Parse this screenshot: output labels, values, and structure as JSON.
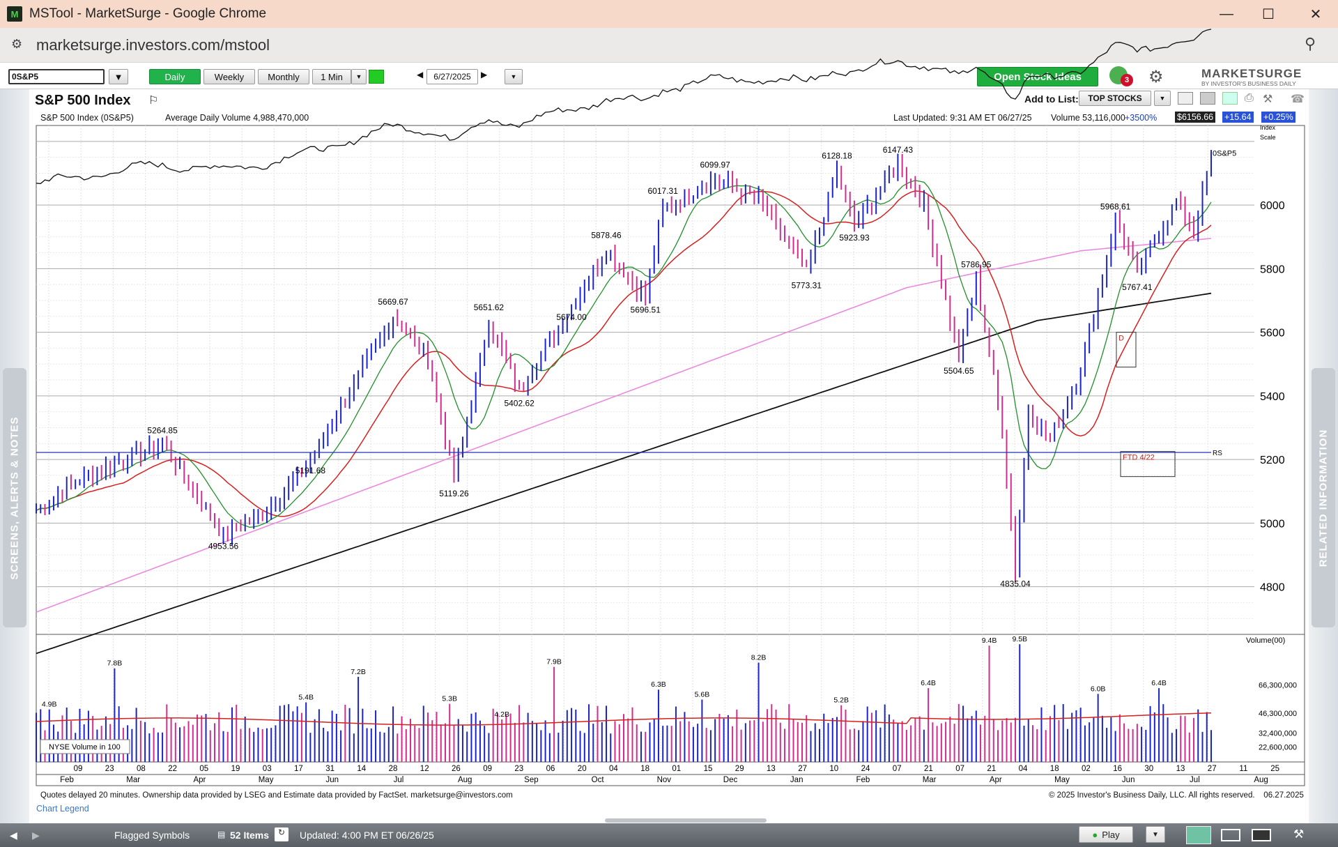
{
  "window": {
    "title": "MSTool - MarketSurge - Google Chrome"
  },
  "browser": {
    "url": "marketsurge.investors.com/mstool"
  },
  "toolbar": {
    "symbol": "0S&P5",
    "periods": [
      "Daily",
      "Weekly",
      "Monthly",
      "1 Min"
    ],
    "active_period": "Daily",
    "date": "6/27/2025",
    "open_ideas": "Open Stock Ideas",
    "alert_count": "3",
    "brand": "MARKETSURGE",
    "brand_sub": "BY INVESTOR'S BUSINESS DAILY"
  },
  "header": {
    "title": "S&P 500 Index",
    "add_to_list": "Add to List:",
    "list_name": "TOP STOCKS"
  },
  "infobar": {
    "name": "S&P 500 Index   (0S&P5)",
    "avg_volume": "Average Daily Volume 4,988,470,000",
    "last_updated": "Last Updated: 9:31 AM ET 06/27/25",
    "volume": "Volume 53,116,000",
    "vol_change": "+3500%",
    "price": "$6156.66",
    "change": "+15.64",
    "change_pct": "+0.25%"
  },
  "chart_data": {
    "type": "candlestick",
    "symbol_label": "0S&P5",
    "scale_label": [
      "Index",
      "Scale"
    ],
    "rs_label": "RS",
    "ylim": [
      4650,
      6250
    ],
    "price_ticks": [
      "6000",
      "5800",
      "5600",
      "5400",
      "5200",
      "5000",
      "4800"
    ],
    "price_tick_values": [
      6000,
      5800,
      5600,
      5400,
      5200,
      5000,
      4800
    ],
    "annotations": [
      {
        "label": "5264.85",
        "day": 29,
        "value": 5264.85,
        "pos": "above"
      },
      {
        "label": "4953.56",
        "day": 43,
        "value": 4953.56,
        "pos": "below"
      },
      {
        "label": "5191.68",
        "day": 63,
        "value": 5191.68,
        "pos": "below"
      },
      {
        "label": "5669.67",
        "day": 82,
        "value": 5669.67,
        "pos": "above"
      },
      {
        "label": "5119.26",
        "day": 96,
        "value": 5119.26,
        "pos": "below"
      },
      {
        "label": "5651.62",
        "day": 104,
        "value": 5651.62,
        "pos": "above"
      },
      {
        "label": "5402.62",
        "day": 111,
        "value": 5402.62,
        "pos": "below"
      },
      {
        "label": "5674.00",
        "day": 123,
        "value": 5674.0,
        "pos": "below"
      },
      {
        "label": "5878.46",
        "day": 131,
        "value": 5878.46,
        "pos": "above"
      },
      {
        "label": "5696.51",
        "day": 140,
        "value": 5696.51,
        "pos": "below"
      },
      {
        "label": "6017.31",
        "day": 144,
        "value": 6017.31,
        "pos": "above"
      },
      {
        "label": "6099.97",
        "day": 156,
        "value": 6099.97,
        "pos": "above"
      },
      {
        "label": "5773.31",
        "day": 177,
        "value": 5773.31,
        "pos": "below"
      },
      {
        "label": "6128.18",
        "day": 184,
        "value": 6128.18,
        "pos": "above"
      },
      {
        "label": "5923.93",
        "day": 188,
        "value": 5923.93,
        "pos": "below"
      },
      {
        "label": "6147.43",
        "day": 198,
        "value": 6147.43,
        "pos": "above"
      },
      {
        "label": "5504.65",
        "day": 212,
        "value": 5504.65,
        "pos": "below"
      },
      {
        "label": "5786.95",
        "day": 216,
        "value": 5786.95,
        "pos": "above"
      },
      {
        "label": "4835.04",
        "day": 225,
        "value": 4835.04,
        "pos": "below"
      },
      {
        "label": "5968.61",
        "day": 248,
        "value": 5968.61,
        "pos": "above"
      },
      {
        "label": "5767.41",
        "day": 253,
        "value": 5767.41,
        "pos": "below"
      }
    ],
    "ftd_label": "FTD 4/22",
    "d_label": "D",
    "volume": {
      "title": "Volume(00)",
      "ticks": [
        "66,300,000",
        "46,300,000",
        "32,400,000",
        "22,600,000"
      ],
      "tick_values": [
        6.63,
        4.63,
        3.24,
        2.26
      ],
      "labels": [
        {
          "label": "4.9B",
          "day": 3,
          "value": 4.9
        },
        {
          "label": "7.8B",
          "day": 18,
          "value": 7.8
        },
        {
          "label": "5.4B",
          "day": 62,
          "value": 5.4
        },
        {
          "label": "7.2B",
          "day": 74,
          "value": 7.2
        },
        {
          "label": "5.3B",
          "day": 95,
          "value": 5.3
        },
        {
          "label": "4.2B",
          "day": 107,
          "value": 4.2
        },
        {
          "label": "7.9B",
          "day": 119,
          "value": 7.9
        },
        {
          "label": "6.3B",
          "day": 143,
          "value": 6.3
        },
        {
          "label": "5.6B",
          "day": 153,
          "value": 5.6
        },
        {
          "label": "8.2B",
          "day": 166,
          "value": 8.2
        },
        {
          "label": "5.2B",
          "day": 185,
          "value": 5.2
        },
        {
          "label": "6.4B",
          "day": 205,
          "value": 6.4
        },
        {
          "label": "9.4B",
          "day": 219,
          "value": 9.4
        },
        {
          "label": "9.5B",
          "day": 226,
          "value": 9.5
        },
        {
          "label": "6.0B",
          "day": 244,
          "value": 6.0
        },
        {
          "label": "6.4B",
          "day": 258,
          "value": 6.4
        }
      ],
      "legend": "NYSE Volume in 100"
    },
    "x_days": [
      "09",
      "23",
      "08",
      "22",
      "05",
      "19",
      "03",
      "17",
      "31",
      "14",
      "28",
      "12",
      "26",
      "09",
      "23",
      "06",
      "20",
      "04",
      "18",
      "01",
      "15",
      "29",
      "13",
      "27",
      "10",
      "24",
      "07",
      "21",
      "07",
      "21",
      "04",
      "18",
      "02",
      "16",
      "30",
      "13",
      "27",
      "11",
      "25"
    ],
    "x_months": [
      "Feb",
      "Mar",
      "Apr",
      "May",
      "Jun",
      "Jul",
      "Aug",
      "Sep",
      "Oct",
      "Nov",
      "Dec",
      "Jan",
      "Feb",
      "Mar",
      "Apr",
      "May",
      "Jun",
      "Jul",
      "Aug"
    ]
  },
  "footer": {
    "left": "Quotes delayed 20 minutes. Ownership data provided by LSEG and Estimate data provided by FactSet. marketsurge@investors.com",
    "right": "© 2025 Investor's Business Daily, LLC. All rights reserved.    06.27.2025",
    "legend_link": "Chart Legend"
  },
  "rails": {
    "left": "SCREENS, ALERTS & NOTES",
    "right": "RELATED INFORMATION"
  },
  "status": {
    "flagged": "Flagged Symbols",
    "items": "52 Items",
    "updated": "Updated: 4:00 PM ET 06/26/25",
    "play": "Play"
  }
}
